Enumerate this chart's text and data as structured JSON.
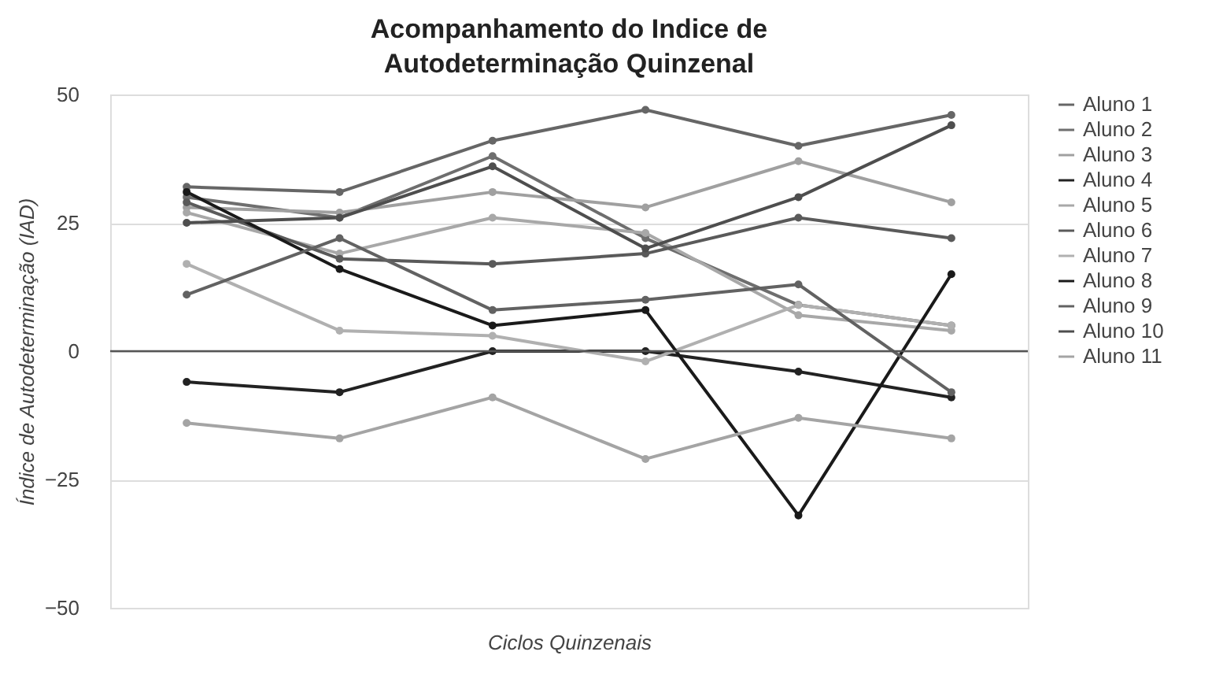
{
  "chart_data": {
    "type": "line",
    "title": "Acompanhamento do Indice de Autodeterminação Quinzenal",
    "xlabel": "Ciclos Quinzenais",
    "ylabel": "Índice de Autodeterminação (IAD)",
    "categories": [
      null,
      null,
      null,
      null,
      null,
      null
    ],
    "ylim": [
      -50,
      50
    ],
    "yticks": [
      -50,
      -25,
      0,
      25,
      50
    ],
    "grid": "y",
    "legend": "right",
    "marker": "circle",
    "line_style": "solid",
    "ref_lines": [
      {
        "axis": "y",
        "value": 0,
        "color": "#555555"
      }
    ],
    "series": [
      {
        "name": "Aluno 1",
        "color": "#666666",
        "values": [
          32,
          31,
          41,
          47,
          40,
          46
        ]
      },
      {
        "name": "Aluno 2",
        "color": "#6e6e6e",
        "values": [
          30,
          26,
          38,
          22,
          9,
          5
        ]
      },
      {
        "name": "Aluno 3",
        "color": "#a0a0a0",
        "values": [
          28,
          27,
          31,
          28,
          37,
          29
        ]
      },
      {
        "name": "Aluno 4",
        "color": "#222222",
        "values": [
          -6,
          -8,
          0,
          0,
          -4,
          -9
        ]
      },
      {
        "name": "Aluno 5",
        "color": "#a8a8a8",
        "values": [
          27,
          19,
          26,
          23,
          7,
          4
        ]
      },
      {
        "name": "Aluno 6",
        "color": "#5a5a5a",
        "values": [
          29,
          18,
          17,
          19,
          26,
          22
        ]
      },
      {
        "name": "Aluno 7",
        "color": "#b0b0b0",
        "values": [
          17,
          4,
          3,
          -2,
          9,
          5
        ]
      },
      {
        "name": "Aluno 8",
        "color": "#1a1a1a",
        "values": [
          31,
          16,
          5,
          8,
          -32,
          15
        ]
      },
      {
        "name": "Aluno 9",
        "color": "#626262",
        "values": [
          11,
          22,
          8,
          10,
          13,
          -8
        ]
      },
      {
        "name": "Aluno 10",
        "color": "#4e4e4e",
        "values": [
          25,
          26,
          36,
          20,
          30,
          44
        ]
      },
      {
        "name": "Aluno 11",
        "color": "#a4a4a4",
        "values": [
          -14,
          -17,
          -9,
          -21,
          -13,
          -17
        ]
      }
    ]
  }
}
